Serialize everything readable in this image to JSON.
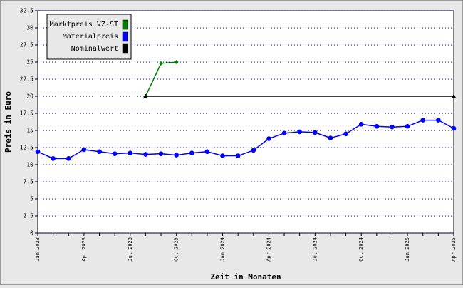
{
  "chart_data": {
    "type": "line",
    "x_label": "Zeit in Monaten",
    "y_label": "Preis in Euro",
    "categories": [
      "Jan 2023",
      null,
      null,
      "Apr 2023",
      null,
      null,
      "Jul 2023",
      null,
      null,
      "Oct 2023",
      null,
      null,
      "Jan 2024",
      null,
      null,
      "Apr 2024",
      null,
      null,
      "Jul 2024",
      null,
      null,
      "Oct 2024",
      null,
      null,
      "Jan 2025",
      null,
      null,
      "Apr 2025"
    ],
    "series": [
      {
        "name": "Marktpreis VZ-ST",
        "color": "#008000",
        "marker": "diamond",
        "values": [
          null,
          null,
          null,
          null,
          null,
          null,
          null,
          20,
          24.8,
          25,
          null,
          null,
          null,
          null,
          null,
          null,
          null,
          null,
          null,
          null,
          null,
          null,
          null,
          null,
          null,
          null,
          null,
          null
        ]
      },
      {
        "name": "Materialpreis",
        "color": "#0000ff",
        "marker": "circle",
        "values": [
          11.9,
          10.9,
          10.9,
          12.2,
          11.9,
          11.6,
          11.7,
          11.5,
          11.6,
          11.4,
          11.7,
          11.9,
          11.3,
          11.3,
          12.1,
          13.8,
          14.6,
          14.8,
          14.7,
          13.9,
          14.5,
          15.9,
          15.6,
          15.5,
          15.6,
          16.5,
          16.5,
          15.3
        ]
      },
      {
        "name": "Nominalwert",
        "color": "#000000",
        "marker": "triangle",
        "values": [
          null,
          null,
          null,
          null,
          null,
          null,
          null,
          20,
          20,
          20,
          20,
          20,
          20,
          20,
          20,
          20,
          20,
          20,
          20,
          20,
          20,
          20,
          20,
          20,
          20,
          20,
          20,
          20
        ]
      }
    ],
    "ylim": [
      0,
      32.5
    ],
    "yticks": [
      0,
      2.5,
      5,
      7.5,
      10,
      12.5,
      15,
      17.5,
      20,
      22.5,
      25,
      27.5,
      30,
      32.5
    ],
    "grid": true,
    "legend": "upper left"
  }
}
